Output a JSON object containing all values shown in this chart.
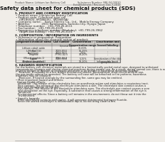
{
  "bg_color": "#f0ede8",
  "header_left": "Product Name: Lithium Ion Battery Cell",
  "header_right_line1": "Substance Number: NRI-04-00010",
  "header_right_line2": "Establishment / Revision: Dec.7,2010",
  "title": "Safety data sheet for chemical products (SDS)",
  "s1_title": "1. PRODUCT AND COMPANY IDENTIFICATION",
  "s1_lines": [
    "• Product name: Lithium Ion Battery Cell",
    "• Product code: Cylindrical-type cell",
    "    (IIR18650U, IIR18650U-, IIR18650A)",
    "• Company name:    Sanyo Electric Co., Ltd.,  Mobile Energy Company",
    "• Address:             2001 Kamikosaka, Sumoto-City, Hyogo, Japan",
    "• Telephone number:   +81-799-26-4111",
    "• Fax number:   +81-799-26-4129",
    "• Emergency telephone number (Weekday): +81-799-26-3962",
    "    (Night and holiday): +81-799-26-3101"
  ],
  "s2_title": "2. COMPOSITION / INFORMATION ON INGREDIENTS",
  "s2_line1": "• Substance or preparation: Preparation",
  "s2_line2": "• Information about the chemical nature of product:",
  "tbl_headers": [
    "Component/chemical name",
    "CAS number",
    "Concentration /\nConcentration range",
    "Classification and\nhazard labeling"
  ],
  "tbl_sub_header": "Several name",
  "tbl_rows": [
    [
      "Lithium cobalt oxide\n(LiMn/CoCO4)",
      "-",
      "30-60%",
      "-"
    ],
    [
      "Iron",
      "7439-89-6",
      "15-25%",
      "-"
    ],
    [
      "Aluminum",
      "7429-90-5",
      "2-5%",
      "-"
    ],
    [
      "Graphite\n(Mixed graphite-1)\n(Artificial graphite-1)",
      "77782-42-5\n7782-44-2",
      "10-20%",
      "-"
    ],
    [
      "Copper",
      "7440-50-8",
      "5-15%",
      "Sensitization of the skin\ngroup No.2"
    ],
    [
      "Organic electrolyte",
      "-",
      "10-20%",
      "Inflammable liquid"
    ]
  ],
  "s3_title": "3. HAZARDS IDENTIFICATION",
  "s3_para": [
    "For the battery cell, chemical materials are stored in a hermetically sealed metal case, designed to withstand",
    "temperatures changes and electro-chemical reactions during normal use. As a result, during normal use, there is no",
    "physical danger of ignition or explosion and there is no danger of hazardous materials leakage.",
    "    However, if exposed to a fire, added mechanical shocks, decomposed, short-circuit-while-in-use,",
    "the gas inside cannot be operated. The battery cell case will be breached or fire patterns, hazardous",
    "materials may be released.",
    "    Moreover, if heated strongly by the surrounding fire, some gas may be emitted."
  ],
  "s3_bullet1": "• Most important hazard and effects:",
  "s3_human": "Human health effects:",
  "s3_human_lines": [
    "Inhalation: The release of the electrolyte has an anesthesia action and stimulates a respiratory tract.",
    "Skin contact: The release of the electrolyte stimulates a skin. The electrolyte skin contact causes a",
    "sore and stimulation on the skin.",
    "Eye contact: The release of the electrolyte stimulates eyes. The electrolyte eye contact causes a sore",
    "and stimulation on the eye. Especially, a substance that causes a strong inflammation of the eye is",
    "contained.",
    "Environmental effects: Since a battery cell remains in the environment, do not throw out it into the",
    "environment."
  ],
  "s3_bullet2": "• Specific hazards:",
  "s3_specific_lines": [
    "If the electrolyte contacts with water, it will generate detrimental hydrogen fluoride.",
    "Since the sealed electrolyte is inflammable liquid, do not bring close to fire."
  ],
  "footer_line": true
}
